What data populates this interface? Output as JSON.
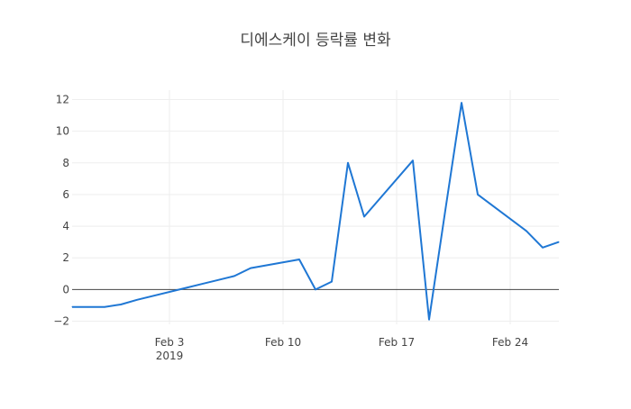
{
  "chart_data": {
    "type": "line",
    "title": "디에스케이 등락률 변화",
    "xlabel": "",
    "ylabel": "",
    "x": [
      "2019-01-28",
      "2019-01-29",
      "2019-01-30",
      "2019-01-31",
      "2019-02-01",
      "2019-02-04",
      "2019-02-05",
      "2019-02-06",
      "2019-02-07",
      "2019-02-08",
      "2019-02-11",
      "2019-02-12",
      "2019-02-13",
      "2019-02-14",
      "2019-02-15",
      "2019-02-18",
      "2019-02-19",
      "2019-02-20",
      "2019-02-21",
      "2019-02-22",
      "2019-02-25",
      "2019-02-26",
      "2019-02-27"
    ],
    "series": [
      {
        "name": "",
        "color": "#1f77d4",
        "values": [
          -1.1,
          -1.1,
          -1.1,
          -0.95,
          -0.65,
          0.1,
          0.35,
          0.6,
          0.85,
          1.35,
          1.9,
          0.0,
          0.5,
          8.0,
          4.6,
          8.15,
          -1.9,
          5.0,
          11.8,
          6.0,
          3.7,
          2.65,
          3.0
        ]
      }
    ],
    "xlim": [
      "2019-01-28",
      "2019-02-27"
    ],
    "ylim": [
      -2.2,
      12.6
    ],
    "yticks": [
      -2,
      0,
      2,
      4,
      6,
      8,
      10,
      12
    ],
    "ytick_labels": [
      "−2",
      "0",
      "2",
      "4",
      "6",
      "8",
      "10",
      "12"
    ],
    "xticks": [
      "2019-02-03",
      "2019-02-10",
      "2019-02-17",
      "2019-02-24"
    ],
    "xtick_labels": [
      "Feb 3",
      "Feb 10",
      "Feb 17",
      "Feb 24"
    ],
    "xtick_sublabel": "2019",
    "grid": true,
    "zero_line": true,
    "legend": "none"
  }
}
